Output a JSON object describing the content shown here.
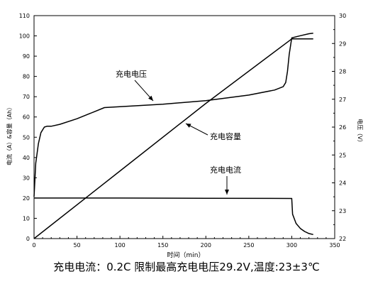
{
  "chart_data": {
    "type": "line",
    "title": "",
    "xlabel": "时间（min）",
    "ylabel_left": "电流（A）&容量（Ah）",
    "ylabel_right": "电压（V）",
    "xlim": [
      0,
      350
    ],
    "ylim_left": [
      0,
      110
    ],
    "ylim_right": [
      22,
      30
    ],
    "grid": false,
    "x_ticks": [
      0,
      50,
      100,
      150,
      200,
      250,
      300,
      350
    ],
    "y_left_ticks": [
      0,
      10,
      20,
      30,
      40,
      50,
      60,
      70,
      80,
      90,
      100,
      110
    ],
    "y_right_ticks": [
      22,
      23,
      24,
      25,
      26,
      27,
      28,
      29,
      30
    ],
    "series": [
      {
        "name": "充电电压",
        "axis": "right",
        "x": [
          0,
          2,
          5,
          8,
          12,
          15,
          20,
          30,
          50,
          70,
          82,
          100,
          150,
          200,
          250,
          280,
          290,
          293,
          295,
          297,
          300,
          310,
          320,
          325
        ],
        "y": [
          23.5,
          24.7,
          25.4,
          25.8,
          26.0,
          26.03,
          26.03,
          26.1,
          26.3,
          26.55,
          26.7,
          26.73,
          26.82,
          26.95,
          27.15,
          27.33,
          27.45,
          27.6,
          28.0,
          28.6,
          29.2,
          29.28,
          29.35,
          29.37
        ]
      },
      {
        "name": "充电容量",
        "axis": "left",
        "x": [
          0,
          100,
          200,
          300,
          325
        ],
        "y": [
          0,
          33.3,
          66.7,
          98.5,
          98.5
        ]
      },
      {
        "name": "充电电流",
        "axis": "left",
        "x": [
          0,
          100,
          200,
          300,
          301,
          305,
          310,
          315,
          320,
          325
        ],
        "y": [
          20,
          20,
          19.9,
          19.8,
          12,
          7.5,
          5,
          3.5,
          2.5,
          2
        ]
      }
    ],
    "annotations": [
      "充电电压",
      "充电容量",
      "充电电流"
    ]
  },
  "caption": "充电电流：0.2C 限制最高充电电压29.2V,温度:23±3℃"
}
